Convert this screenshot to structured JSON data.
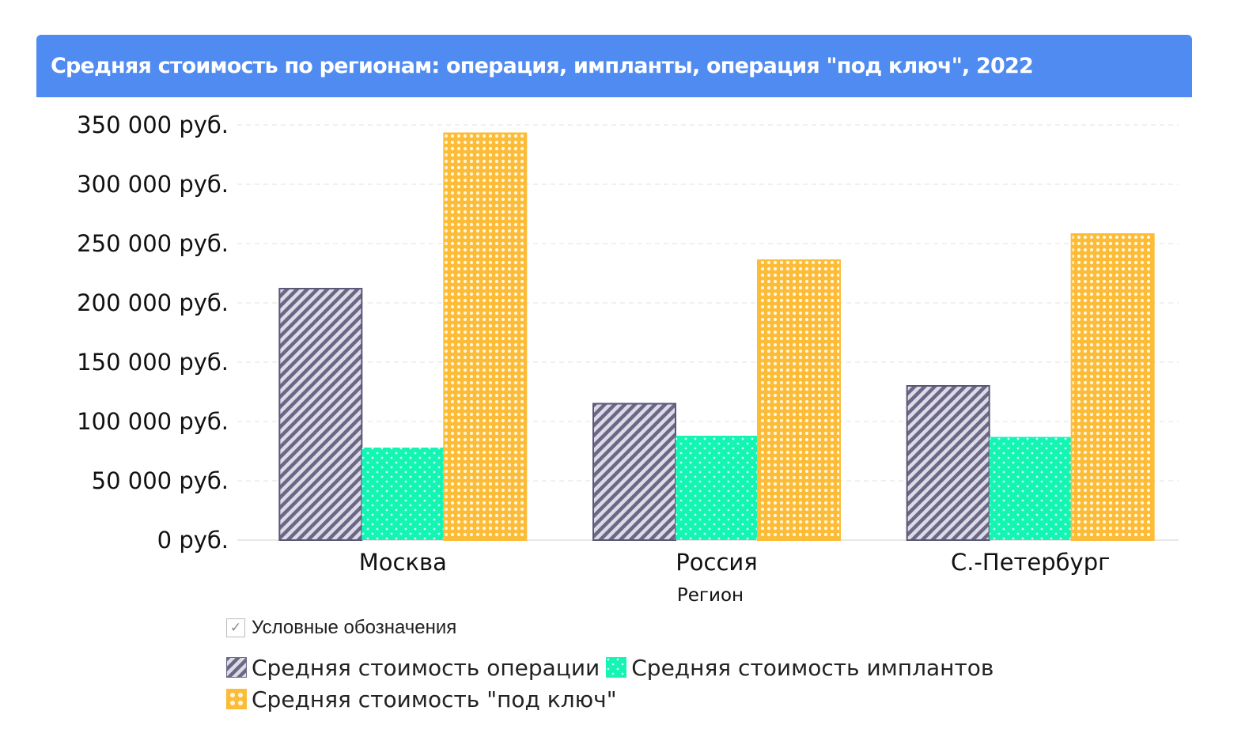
{
  "header": {
    "title": "Средняя стоимость по регионам: операция, импланты, операция \"под ключ\", 2022"
  },
  "legend": {
    "toggle_label": "Условные обозначения",
    "toggle_checked": true,
    "checkmark_glyph": "✓"
  },
  "colors": {
    "header_bg": "#4f8bf0",
    "operation": "#6b6787",
    "implants": "#14f5b4",
    "turnkey": "#fcbc38",
    "grid": "#e2e2e2",
    "axis_text": "#111111"
  },
  "chart_data": {
    "type": "bar",
    "xlabel": "Регион",
    "ylabel": "",
    "categories": [
      "Москва",
      "Россия",
      "С.-Петербург"
    ],
    "ylim": [
      0,
      350000
    ],
    "ytick_values": [
      0,
      50000,
      100000,
      150000,
      200000,
      250000,
      300000,
      350000
    ],
    "ytick_labels": [
      "0 руб.",
      "50 000 руб.",
      "100 000 руб.",
      "150 000 руб.",
      "200 000 руб.",
      "250 000 руб.",
      "300 000 руб.",
      "350 000 руб."
    ],
    "grid": true,
    "legend_position": "bottom",
    "series": [
      {
        "name": "Средняя стоимость операции",
        "pattern": "diagonal-hatch",
        "color": "#6b6787",
        "values": [
          212000,
          115000,
          130000
        ]
      },
      {
        "name": "Средняя стоимость имплантов",
        "pattern": "dots",
        "color": "#14f5b4",
        "values": [
          78000,
          88000,
          87000
        ]
      },
      {
        "name": "Средняя стоимость \"под ключ\"",
        "pattern": "grid-dots",
        "color": "#fcbc38",
        "values": [
          343000,
          236000,
          258000
        ]
      }
    ]
  }
}
